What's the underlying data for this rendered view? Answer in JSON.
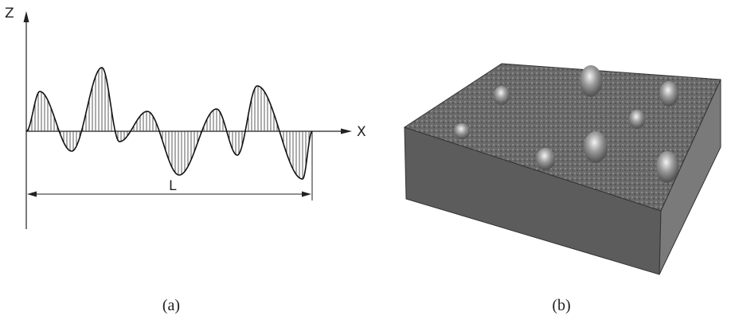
{
  "labels": {
    "z": "Z",
    "x": "X",
    "l": "L"
  },
  "captions": {
    "a": "(a)",
    "b": "(b)"
  }
}
